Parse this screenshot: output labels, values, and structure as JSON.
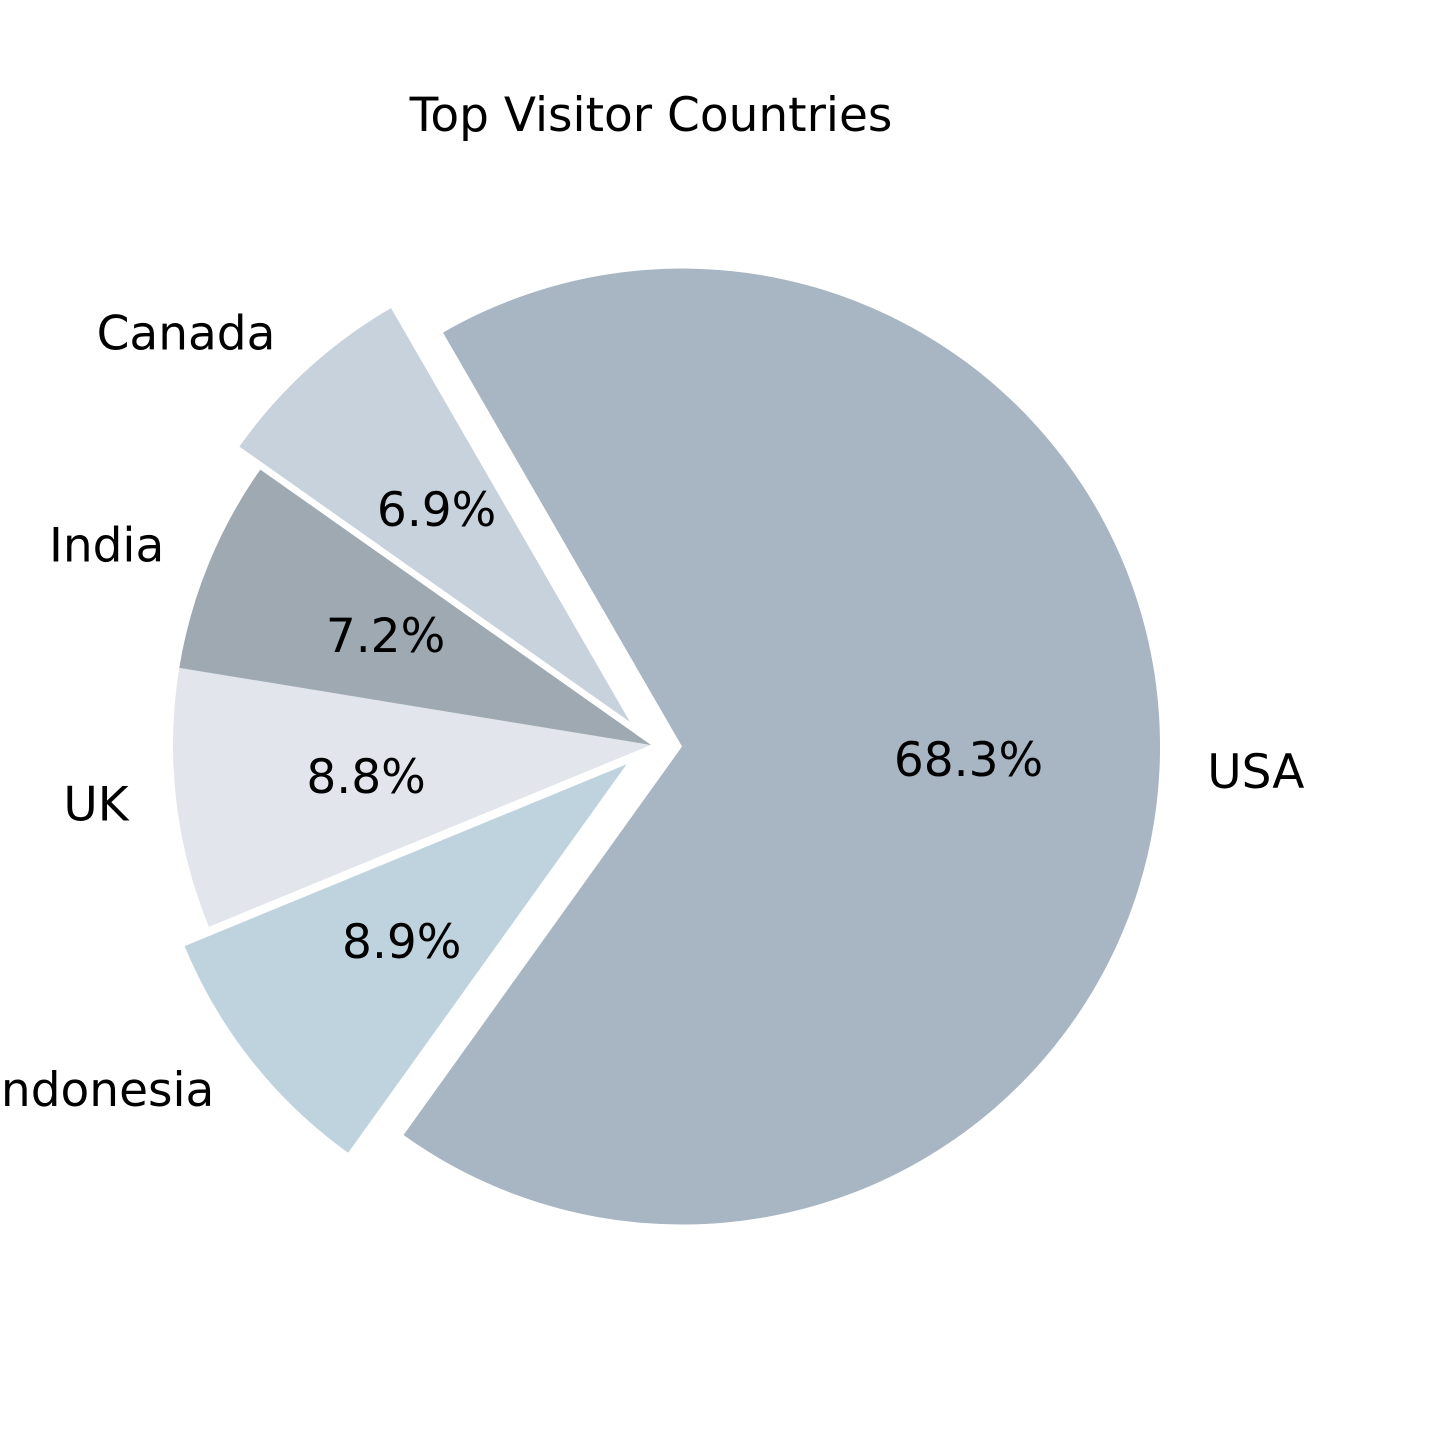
{
  "chart_data": {
    "type": "pie",
    "title": "Top Visitor Countries",
    "slices": [
      {
        "label": "USA",
        "value": 68.3,
        "value_label": "68.3%",
        "color": "#a8b5c3",
        "exploded": true
      },
      {
        "label": "Indonesia",
        "value": 8.9,
        "value_label": "8.9%",
        "color": "#bfd3de",
        "exploded": true
      },
      {
        "label": "UK",
        "value": 8.8,
        "value_label": "8.8%",
        "color": "#e2e6ec",
        "exploded": false
      },
      {
        "label": "India",
        "value": 7.2,
        "value_label": "7.2%",
        "color": "#9ea9b2",
        "exploded": false
      },
      {
        "label": "Canada",
        "value": 6.9,
        "value_label": "6.9%",
        "color": "#c8d2dc",
        "exploded": true
      }
    ],
    "start_angle_deg": 120,
    "direction": "clockwise"
  }
}
